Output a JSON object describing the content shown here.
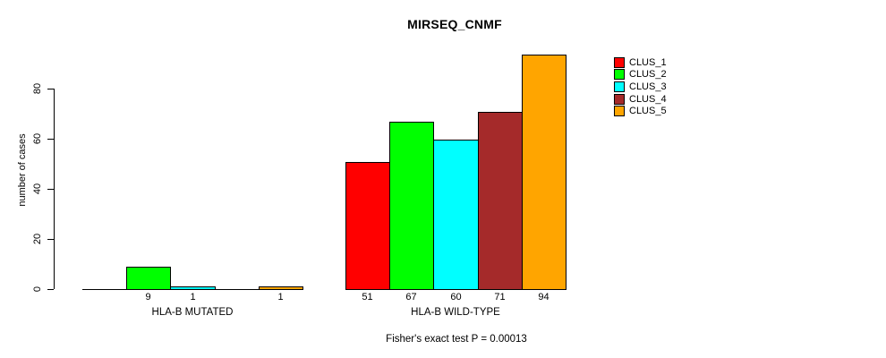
{
  "chart_data": {
    "type": "bar",
    "title": "MIRSEQ_CNMF",
    "ylabel": "number of cases",
    "xlabel": "",
    "groups": [
      "HLA-B MUTATED",
      "HLA-B WILD-TYPE"
    ],
    "series": [
      {
        "name": "CLUS_1",
        "color": "#FF0000",
        "values": [
          0,
          51
        ]
      },
      {
        "name": "CLUS_2",
        "color": "#00FF00",
        "values": [
          9,
          67
        ]
      },
      {
        "name": "CLUS_3",
        "color": "#00FFFF",
        "values": [
          1,
          60
        ]
      },
      {
        "name": "CLUS_4",
        "color": "#A52A2A",
        "values": [
          0,
          71
        ]
      },
      {
        "name": "CLUS_5",
        "color": "#FFA500",
        "values": [
          1,
          94
        ]
      }
    ],
    "bar_value_labels": {
      "HLA-B MUTATED": [
        "",
        "9",
        "1",
        "",
        "1"
      ],
      "HLA-B WILD-TYPE": [
        "51",
        "67",
        "60",
        "71",
        "94"
      ]
    },
    "yticks": [
      0,
      20,
      40,
      60,
      80
    ],
    "ylim": [
      0,
      94
    ],
    "grid": false,
    "legend_position": "right",
    "legend": [
      "CLUS_1",
      "CLUS_2",
      "CLUS_3",
      "CLUS_4",
      "CLUS_5"
    ],
    "annotation": "Fisher's exact test P = 0.00013"
  }
}
